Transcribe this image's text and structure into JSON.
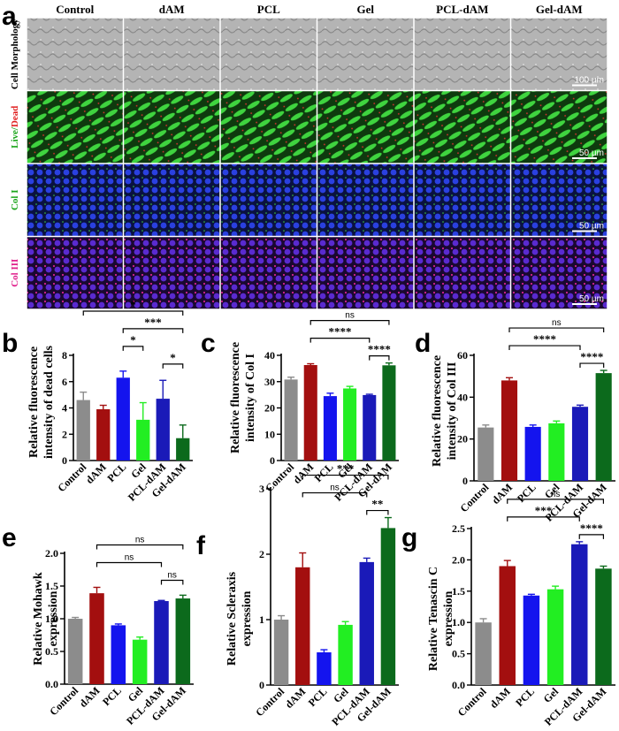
{
  "colors": {
    "Control": "#8c8c8c",
    "dAM": "#a30f0f",
    "PCL": "#1414ee",
    "Gel": "#22ee22",
    "PCL-dAM": "#1a1ab8",
    "Gel-dAM": "#0c6a1c",
    "morph": "#b8b8b8",
    "live": "#2fbf2f",
    "col1": "#1c2fb0",
    "col3": "#5a1a86"
  },
  "panel_a": {
    "letter": "a",
    "conditions": [
      "Control",
      "dAM",
      "PCL",
      "Gel",
      "PCL-dAM",
      "Gel-dAM"
    ],
    "rows": [
      {
        "parts": [
          {
            "text": "Cell Morphology",
            "color": "#000000"
          }
        ],
        "scale_bar": "100 µm",
        "tone": "morph"
      },
      {
        "parts": [
          {
            "text": "Live/",
            "color": "#1aa51a"
          },
          {
            "text": "Dead",
            "color": "#e02020"
          }
        ],
        "scale_bar": "50 µm",
        "tone": "live"
      },
      {
        "parts": [
          {
            "text": "Col I",
            "color": "#1aa51a"
          }
        ],
        "scale_bar": "50 µm",
        "tone": "col1"
      },
      {
        "parts": [
          {
            "text": "Col III",
            "color": "#e0208c"
          }
        ],
        "scale_bar": "50 µm",
        "tone": "col3"
      }
    ]
  },
  "chart_data": [
    {
      "type": "bar",
      "letter": "b",
      "categories": [
        "Control",
        "dAM",
        "PCL",
        "Gel",
        "PCL-dAM",
        "Gel-dAM"
      ],
      "values": [
        4.6,
        3.9,
        6.3,
        3.1,
        4.7,
        1.7
      ],
      "errors": [
        0.6,
        0.3,
        0.5,
        1.3,
        1.4,
        1.0
      ],
      "ylabel_lines": [
        "Relative fluorescence",
        "intensity of dead cells"
      ],
      "ylim": [
        0,
        8
      ],
      "yticks": [
        0,
        2,
        4,
        6,
        8
      ],
      "grid": false,
      "comparisons": [
        {
          "from": 0,
          "to": 5,
          "label": "*"
        },
        {
          "from": 2,
          "to": 5,
          "label": "***"
        },
        {
          "from": 2,
          "to": 3,
          "label": "*"
        },
        {
          "from": 4,
          "to": 5,
          "label": "*"
        }
      ]
    },
    {
      "type": "bar",
      "letter": "c",
      "categories": [
        "Control",
        "dAM",
        "PCL",
        "Gel",
        "PCL-dAM",
        "Gel-dAM"
      ],
      "values": [
        30.8,
        36.3,
        24.5,
        27.4,
        24.9,
        36.2
      ],
      "errors": [
        0.9,
        0.5,
        1.1,
        0.8,
        0.3,
        0.9
      ],
      "ylabel_lines": [
        "Relative fluorescence",
        "intensity of Col I"
      ],
      "ylim": [
        0,
        40
      ],
      "yticks": [
        0,
        10,
        20,
        30,
        40
      ],
      "grid": false,
      "comparisons": [
        {
          "from": 1,
          "to": 5,
          "label": "ns"
        },
        {
          "from": 1,
          "to": 4,
          "label": "****"
        },
        {
          "from": 4,
          "to": 5,
          "label": "****"
        }
      ]
    },
    {
      "type": "bar",
      "letter": "d",
      "categories": [
        "Control",
        "dAM",
        "PCL",
        "Gel",
        "PCL-dAM",
        "Gel-dAM"
      ],
      "values": [
        25.5,
        48.0,
        25.8,
        27.5,
        35.4,
        51.5
      ],
      "errors": [
        1.2,
        1.3,
        0.9,
        1.1,
        0.8,
        1.3
      ],
      "ylabel_lines": [
        "Relative fluorescence",
        "intensity of Col III"
      ],
      "ylim": [
        0,
        60
      ],
      "yticks": [
        0,
        20,
        40,
        60
      ],
      "grid": false,
      "comparisons": [
        {
          "from": 1,
          "to": 5,
          "label": "ns"
        },
        {
          "from": 1,
          "to": 4,
          "label": "****"
        },
        {
          "from": 4,
          "to": 5,
          "label": "****"
        }
      ]
    },
    {
      "type": "bar",
      "letter": "e",
      "categories": [
        "Control",
        "dAM",
        "PCL",
        "Gel",
        "PCL-dAM",
        "Gel-dAM"
      ],
      "values": [
        1.0,
        1.39,
        0.9,
        0.68,
        1.27,
        1.31
      ],
      "errors": [
        0.02,
        0.09,
        0.02,
        0.04,
        0.01,
        0.05
      ],
      "ylabel_lines": [
        "Relative Mohawk",
        "expression"
      ],
      "ylim": [
        0,
        2.0
      ],
      "yticks": [
        0.0,
        0.5,
        1.0,
        1.5,
        2.0
      ],
      "grid": false,
      "comparisons": [
        {
          "from": 1,
          "to": 5,
          "label": "ns"
        },
        {
          "from": 1,
          "to": 4,
          "label": "ns"
        },
        {
          "from": 4,
          "to": 5,
          "label": "ns"
        }
      ]
    },
    {
      "type": "bar",
      "letter": "f",
      "categories": [
        "Control",
        "dAM",
        "PCL",
        "Gel",
        "PCL-dAM",
        "Gel-dAM"
      ],
      "values": [
        1.0,
        1.8,
        0.5,
        0.92,
        1.88,
        2.4
      ],
      "errors": [
        0.06,
        0.22,
        0.04,
        0.05,
        0.06,
        0.16
      ],
      "ylabel_lines": [
        "Relative Scleraxis",
        "expression"
      ],
      "ylim": [
        0,
        3
      ],
      "yticks": [
        0,
        1,
        2,
        3
      ],
      "grid": false,
      "comparisons": [
        {
          "from": 1,
          "to": 5,
          "label": "***"
        },
        {
          "from": 1,
          "to": 4,
          "label": "ns"
        },
        {
          "from": 4,
          "to": 5,
          "label": "**"
        }
      ]
    },
    {
      "type": "bar",
      "letter": "g",
      "categories": [
        "Control",
        "dAM",
        "PCL",
        "Gel",
        "PCL-dAM",
        "Gel-dAM"
      ],
      "values": [
        1.0,
        1.9,
        1.43,
        1.53,
        2.25,
        1.86
      ],
      "errors": [
        0.06,
        0.09,
        0.02,
        0.05,
        0.04,
        0.04
      ],
      "ylabel_lines": [
        "Relative Tenascin C",
        "expression"
      ],
      "ylim": [
        0,
        2.5
      ],
      "yticks": [
        0.0,
        0.5,
        1.0,
        1.5,
        2.0,
        2.5
      ],
      "grid": false,
      "comparisons": [
        {
          "from": 1,
          "to": 5,
          "label": "ns"
        },
        {
          "from": 1,
          "to": 4,
          "label": "***"
        },
        {
          "from": 4,
          "to": 5,
          "label": "****"
        }
      ]
    }
  ]
}
